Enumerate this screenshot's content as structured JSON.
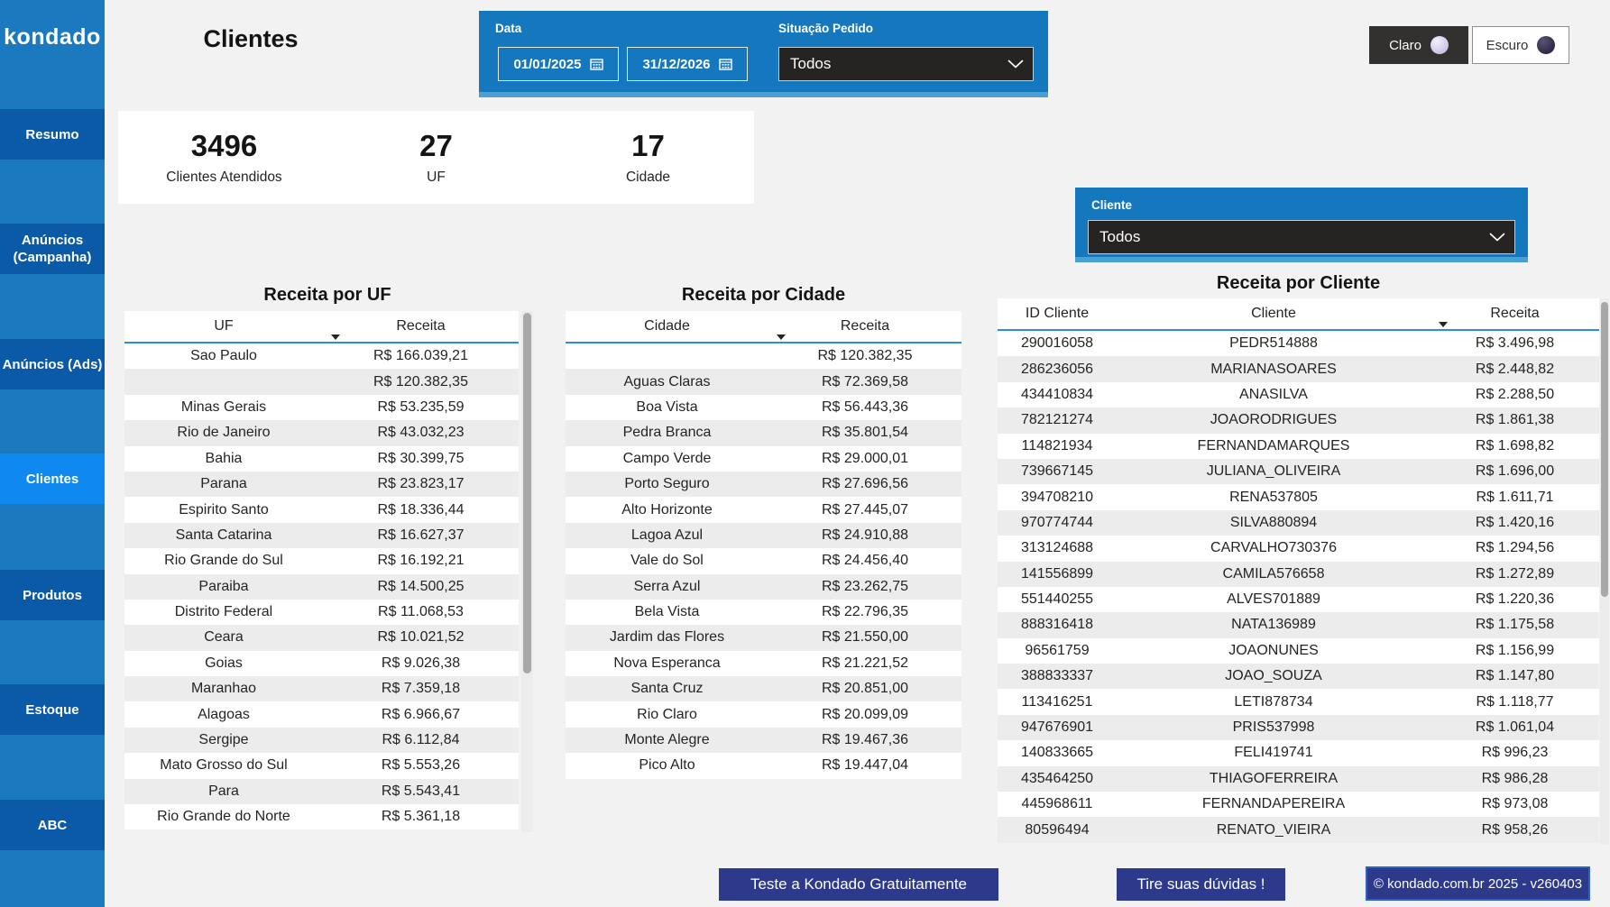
{
  "app": {
    "logo": "kondado",
    "page_title": "Clientes"
  },
  "colors": {
    "sidebar_blue": "#1b79c0",
    "nav_item_blue": "#0b5aa8",
    "nav_active_blue": "#0f88ef",
    "filter_panel_blue": "#1577bd",
    "filter_panel_edge": "#4b9fd3",
    "dropdown_dark": "#252423",
    "table_header_line": "#2b8be8",
    "row_alt_gray": "#ececec",
    "footer_navy": "#2d3a8c",
    "footer_border_blue": "#2e63c6"
  },
  "sidebar": {
    "items": [
      {
        "label": "Resumo",
        "active": false
      },
      {
        "label": "Anúncios (Campanha)",
        "active": false
      },
      {
        "label": "Anúncios (Ads)",
        "active": false
      },
      {
        "label": "Clientes",
        "active": true
      },
      {
        "label": "Produtos",
        "active": false
      },
      {
        "label": "Estoque",
        "active": false
      },
      {
        "label": "ABC",
        "active": false
      }
    ]
  },
  "filters": {
    "data": {
      "label": "Data",
      "start": "01/01/2025",
      "end": "31/12/2026"
    },
    "situacao": {
      "label": "Situação Pedido",
      "value": "Todos"
    },
    "cliente": {
      "label": "Cliente",
      "value": "Todos"
    }
  },
  "theme_toggle": {
    "claro": "Claro",
    "escuro": "Escuro"
  },
  "kpis": [
    {
      "value": "3496",
      "label": "Clientes Atendidos"
    },
    {
      "value": "27",
      "label": "UF"
    },
    {
      "value": "17",
      "label": "Cidade"
    }
  ],
  "tables": {
    "uf": {
      "title": "Receita por UF",
      "columns": [
        "UF",
        "Receita"
      ],
      "rows": [
        [
          "Sao Paulo",
          "R$ 166.039,21"
        ],
        [
          "",
          "R$ 120.382,35"
        ],
        [
          "Minas Gerais",
          "R$ 53.235,59"
        ],
        [
          "Rio de Janeiro",
          "R$ 43.032,23"
        ],
        [
          "Bahia",
          "R$ 30.399,75"
        ],
        [
          "Parana",
          "R$ 23.823,17"
        ],
        [
          "Espirito Santo",
          "R$ 18.336,44"
        ],
        [
          "Santa Catarina",
          "R$ 16.627,37"
        ],
        [
          "Rio Grande do Sul",
          "R$ 16.192,21"
        ],
        [
          "Paraiba",
          "R$ 14.500,25"
        ],
        [
          "Distrito Federal",
          "R$ 11.068,53"
        ],
        [
          "Ceara",
          "R$ 10.021,52"
        ],
        [
          "Goias",
          "R$ 9.026,38"
        ],
        [
          "Maranhao",
          "R$ 7.359,18"
        ],
        [
          "Alagoas",
          "R$ 6.966,67"
        ],
        [
          "Sergipe",
          "R$ 6.112,84"
        ],
        [
          "Mato Grosso do Sul",
          "R$ 5.553,26"
        ],
        [
          "Para",
          "R$ 5.543,41"
        ],
        [
          "Rio Grande do Norte",
          "R$ 5.361,18"
        ]
      ]
    },
    "cidade": {
      "title": "Receita por Cidade",
      "columns": [
        "Cidade",
        "Receita"
      ],
      "rows": [
        [
          "",
          "R$ 120.382,35"
        ],
        [
          "Aguas Claras",
          "R$ 72.369,58"
        ],
        [
          "Boa Vista",
          "R$ 56.443,36"
        ],
        [
          "Pedra Branca",
          "R$ 35.801,54"
        ],
        [
          "Campo Verde",
          "R$ 29.000,01"
        ],
        [
          "Porto Seguro",
          "R$ 27.696,56"
        ],
        [
          "Alto Horizonte",
          "R$ 27.445,07"
        ],
        [
          "Lagoa Azul",
          "R$ 24.910,88"
        ],
        [
          "Vale do Sol",
          "R$ 24.456,40"
        ],
        [
          "Serra Azul",
          "R$ 23.262,75"
        ],
        [
          "Bela Vista",
          "R$ 22.796,35"
        ],
        [
          "Jardim das Flores",
          "R$ 21.550,00"
        ],
        [
          "Nova Esperanca",
          "R$ 21.221,52"
        ],
        [
          "Santa Cruz",
          "R$ 20.851,00"
        ],
        [
          "Rio Claro",
          "R$ 20.099,09"
        ],
        [
          "Monte Alegre",
          "R$ 19.467,36"
        ],
        [
          "Pico Alto",
          "R$ 19.447,04"
        ]
      ]
    },
    "cliente": {
      "title": "Receita por Cliente",
      "columns": [
        "ID Cliente",
        "Cliente",
        "Receita"
      ],
      "rows": [
        [
          "290016058",
          "PEDR514888",
          "R$ 3.496,98"
        ],
        [
          "286236056",
          "MARIANASOARES",
          "R$ 2.448,82"
        ],
        [
          "434410834",
          "ANASILVA",
          "R$ 2.288,50"
        ],
        [
          "782121274",
          "JOAORODRIGUES",
          "R$ 1.861,38"
        ],
        [
          "114821934",
          "FERNANDAMARQUES",
          "R$ 1.698,82"
        ],
        [
          "739667145",
          "JULIANA_OLIVEIRA",
          "R$ 1.696,00"
        ],
        [
          "394708210",
          "RENA537805",
          "R$ 1.611,71"
        ],
        [
          "970774744",
          "SILVA880894",
          "R$ 1.420,16"
        ],
        [
          "313124688",
          "CARVALHO730376",
          "R$ 1.294,56"
        ],
        [
          "141556899",
          "CAMILA576658",
          "R$ 1.272,89"
        ],
        [
          "551440255",
          "ALVES701889",
          "R$ 1.220,36"
        ],
        [
          "888316418",
          "NATA136989",
          "R$ 1.175,58"
        ],
        [
          "96561759",
          "JOAONUNES",
          "R$ 1.156,99"
        ],
        [
          "388833337",
          "JOAO_SOUZA",
          "R$ 1.147,80"
        ],
        [
          "113416251",
          "LETI878734",
          "R$ 1.118,77"
        ],
        [
          "947676901",
          "PRIS537998",
          "R$ 1.061,04"
        ],
        [
          "140833665",
          "FELI419741",
          "R$ 996,23"
        ],
        [
          "435464250",
          "THIAGOFERREIRA",
          "R$ 986,28"
        ],
        [
          "445968611",
          "FERNANDAPEREIRA",
          "R$ 973,08"
        ],
        [
          "80596494",
          "RENATO_VIEIRA",
          "R$ 958,26"
        ]
      ]
    }
  },
  "footer": {
    "buttons": [
      "Teste a Kondado Gratuitamente",
      "Tire suas dúvidas !",
      "© kondado.com.br 2025 - v260403"
    ]
  }
}
